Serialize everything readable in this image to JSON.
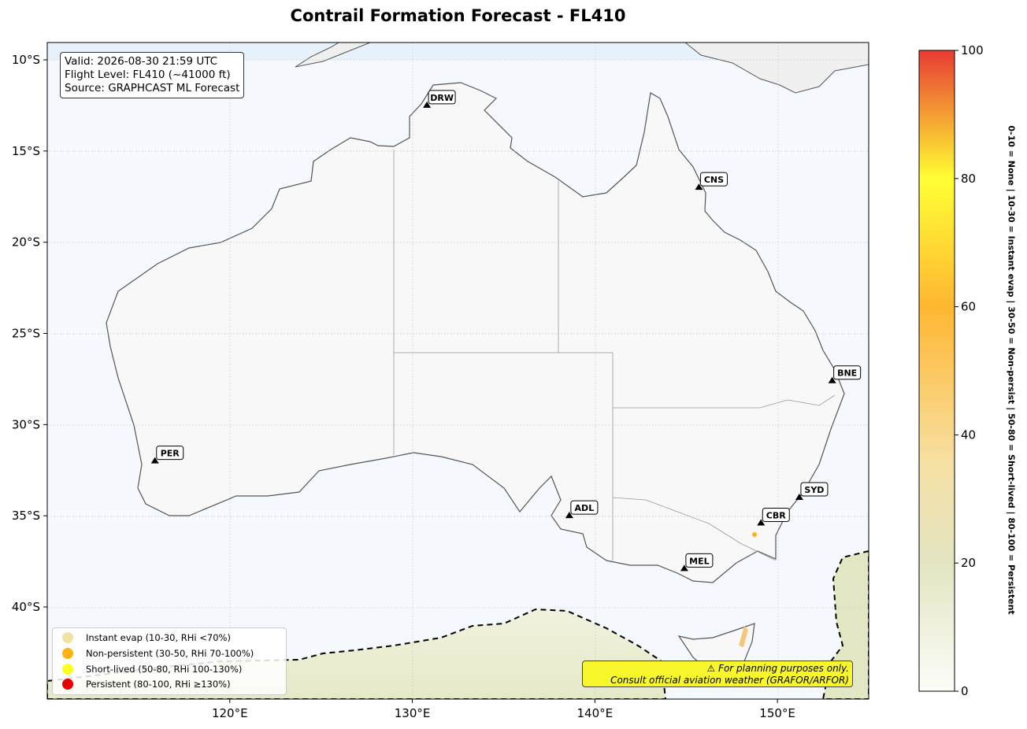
{
  "title": "Contrail Formation Forecast - FL410",
  "info": {
    "valid": "Valid: 2026-08-30 21:59 UTC",
    "flight_level": "Flight Level: FL410 (~41000 ft)",
    "source": "Source: GRAPHCAST ML Forecast"
  },
  "axes": {
    "lon_ticks": [
      "120°E",
      "130°E",
      "140°E",
      "150°E"
    ],
    "lat_ticks": [
      "10°S",
      "15°S",
      "20°S",
      "25°S",
      "30°S",
      "35°S",
      "40°S"
    ]
  },
  "cities": [
    {
      "code": "DRW",
      "lon": 130.8,
      "lat": -12.5
    },
    {
      "code": "CNS",
      "lon": 145.7,
      "lat": -17.0
    },
    {
      "code": "BNE",
      "lon": 153.0,
      "lat": -27.6
    },
    {
      "code": "PER",
      "lon": 115.9,
      "lat": -32.0
    },
    {
      "code": "ADL",
      "lon": 138.6,
      "lat": -35.0
    },
    {
      "code": "SYD",
      "lon": 151.2,
      "lat": -34.0
    },
    {
      "code": "CBR",
      "lon": 149.1,
      "lat": -35.4
    },
    {
      "code": "MEL",
      "lon": 144.9,
      "lat": -37.9
    }
  ],
  "legend": [
    {
      "label": "Instant evap (10-30, RHi <70%)",
      "color": "#f0e2a0"
    },
    {
      "label": "Non-persistent (30-50, RHi 70-100%)",
      "color": "#ffb311"
    },
    {
      "label": "Short-lived (50-80, RHi 100-130%)",
      "color": "#ffff22"
    },
    {
      "label": "Persistent (80-100, RHi ≥130%)",
      "color": "#e60000"
    }
  ],
  "warning": {
    "line1": "⚠ For planning purposes only.",
    "line2": "Consult official aviation weather (GRAFOR/ARFOR)"
  },
  "colorbar": {
    "ticks": [
      "0",
      "20",
      "40",
      "60",
      "80",
      "100"
    ],
    "label": "0-10 = None  |  10-30 = Instant evap  |  30-50 = Non-persist  |  50-80 = Short-lived  |  80-100 = Persistent"
  }
}
